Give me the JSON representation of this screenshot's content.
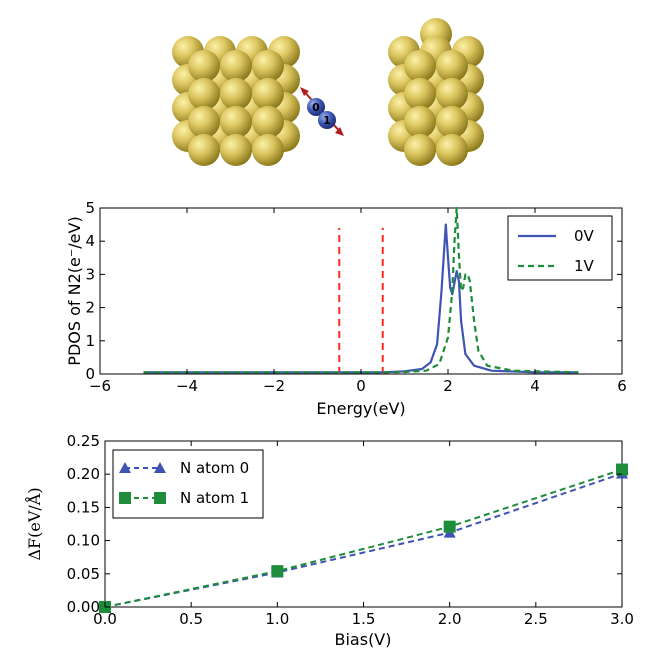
{
  "colors": {
    "gold": "#d9c25a",
    "gold_dark": "#8c7a1c",
    "nitrogen": "#3b56b5",
    "arrow": "#b21f1f",
    "series_0V": "#3f54b3",
    "series_1V": "#1e8c3a",
    "fermi_window": "#ff2b1a",
    "atom0": "#3f54b3",
    "atom1": "#1e8c3a"
  },
  "molecule": {
    "atom_labels": [
      "0",
      "1"
    ]
  },
  "chart_data": [
    {
      "type": "line",
      "xlabel": "Energy(eV)",
      "ylabel": "PDOS of N2(e⁻/eV)",
      "xlim": [
        -6,
        6
      ],
      "ylim": [
        0,
        5
      ],
      "xticks": [
        -6,
        -4,
        -2,
        0,
        2,
        4,
        6
      ],
      "yticks": [
        0,
        1,
        2,
        3,
        4,
        5
      ],
      "xtick_labels": [
        "−6",
        "−4",
        "−2",
        "0",
        "2",
        "4",
        "6"
      ],
      "ytick_labels": [
        "0",
        "1",
        "2",
        "3",
        "4",
        "5"
      ],
      "legend_position": "top-right",
      "grid": false,
      "series": [
        {
          "name": "0V",
          "style": "solid",
          "color": "#3f54b3",
          "x": [
            -5.0,
            -3.0,
            -1.0,
            0.5,
            1.0,
            1.4,
            1.6,
            1.75,
            1.85,
            1.95,
            2.0,
            2.05,
            2.1,
            2.15,
            2.2,
            2.25,
            2.3,
            2.4,
            2.6,
            3.0,
            4.0,
            5.0
          ],
          "y": [
            0.05,
            0.05,
            0.05,
            0.05,
            0.08,
            0.15,
            0.35,
            0.9,
            2.5,
            4.5,
            3.5,
            2.6,
            2.4,
            2.75,
            3.1,
            2.8,
            1.6,
            0.6,
            0.25,
            0.1,
            0.05,
            0.05
          ]
        },
        {
          "name": "1V",
          "style": "dashed",
          "color": "#1e8c3a",
          "x": [
            -5.0,
            -3.0,
            -1.0,
            0.5,
            1.0,
            1.5,
            1.8,
            2.0,
            2.1,
            2.15,
            2.2,
            2.25,
            2.3,
            2.35,
            2.4,
            2.45,
            2.5,
            2.6,
            2.7,
            2.9,
            3.5,
            5.0
          ],
          "y": [
            0.05,
            0.05,
            0.05,
            0.05,
            0.06,
            0.1,
            0.3,
            1.1,
            2.5,
            4.0,
            5.0,
            3.6,
            2.5,
            2.6,
            3.0,
            3.0,
            2.8,
            1.6,
            0.7,
            0.25,
            0.1,
            0.05
          ]
        }
      ],
      "vlines": [
        {
          "x": -0.5,
          "y": [
            0,
            4.4
          ],
          "color": "#ff2b1a",
          "style": "dashed"
        },
        {
          "x": 0.5,
          "y": [
            0,
            4.4
          ],
          "color": "#ff2b1a",
          "style": "dashed"
        }
      ]
    },
    {
      "type": "line",
      "xlabel": "Bias(V)",
      "ylabel": "ΔF(eV/Å)",
      "xlim": [
        0.0,
        3.0
      ],
      "ylim": [
        0.0,
        0.25
      ],
      "xticks": [
        0.0,
        0.5,
        1.0,
        1.5,
        2.0,
        2.5,
        3.0
      ],
      "yticks": [
        0.0,
        0.05,
        0.1,
        0.15,
        0.2,
        0.25
      ],
      "xtick_labels": [
        "0.0",
        "0.5",
        "1.0",
        "1.5",
        "2.0",
        "2.5",
        "3.0"
      ],
      "ytick_labels": [
        "0.00",
        "0.05",
        "0.10",
        "0.15",
        "0.20",
        "0.25"
      ],
      "legend_position": "top-left",
      "grid": false,
      "series": [
        {
          "name": "N atom 0",
          "marker": "triangle",
          "style": "dashed",
          "color": "#3f54b3",
          "x": [
            0.0,
            1.0,
            2.0,
            3.0
          ],
          "y": [
            0.0,
            0.052,
            0.112,
            0.201
          ]
        },
        {
          "name": "N atom 1",
          "marker": "square",
          "style": "dashed",
          "color": "#1e8c3a",
          "x": [
            0.0,
            1.0,
            2.0,
            3.0
          ],
          "y": [
            0.0,
            0.054,
            0.121,
            0.207
          ]
        }
      ]
    }
  ]
}
